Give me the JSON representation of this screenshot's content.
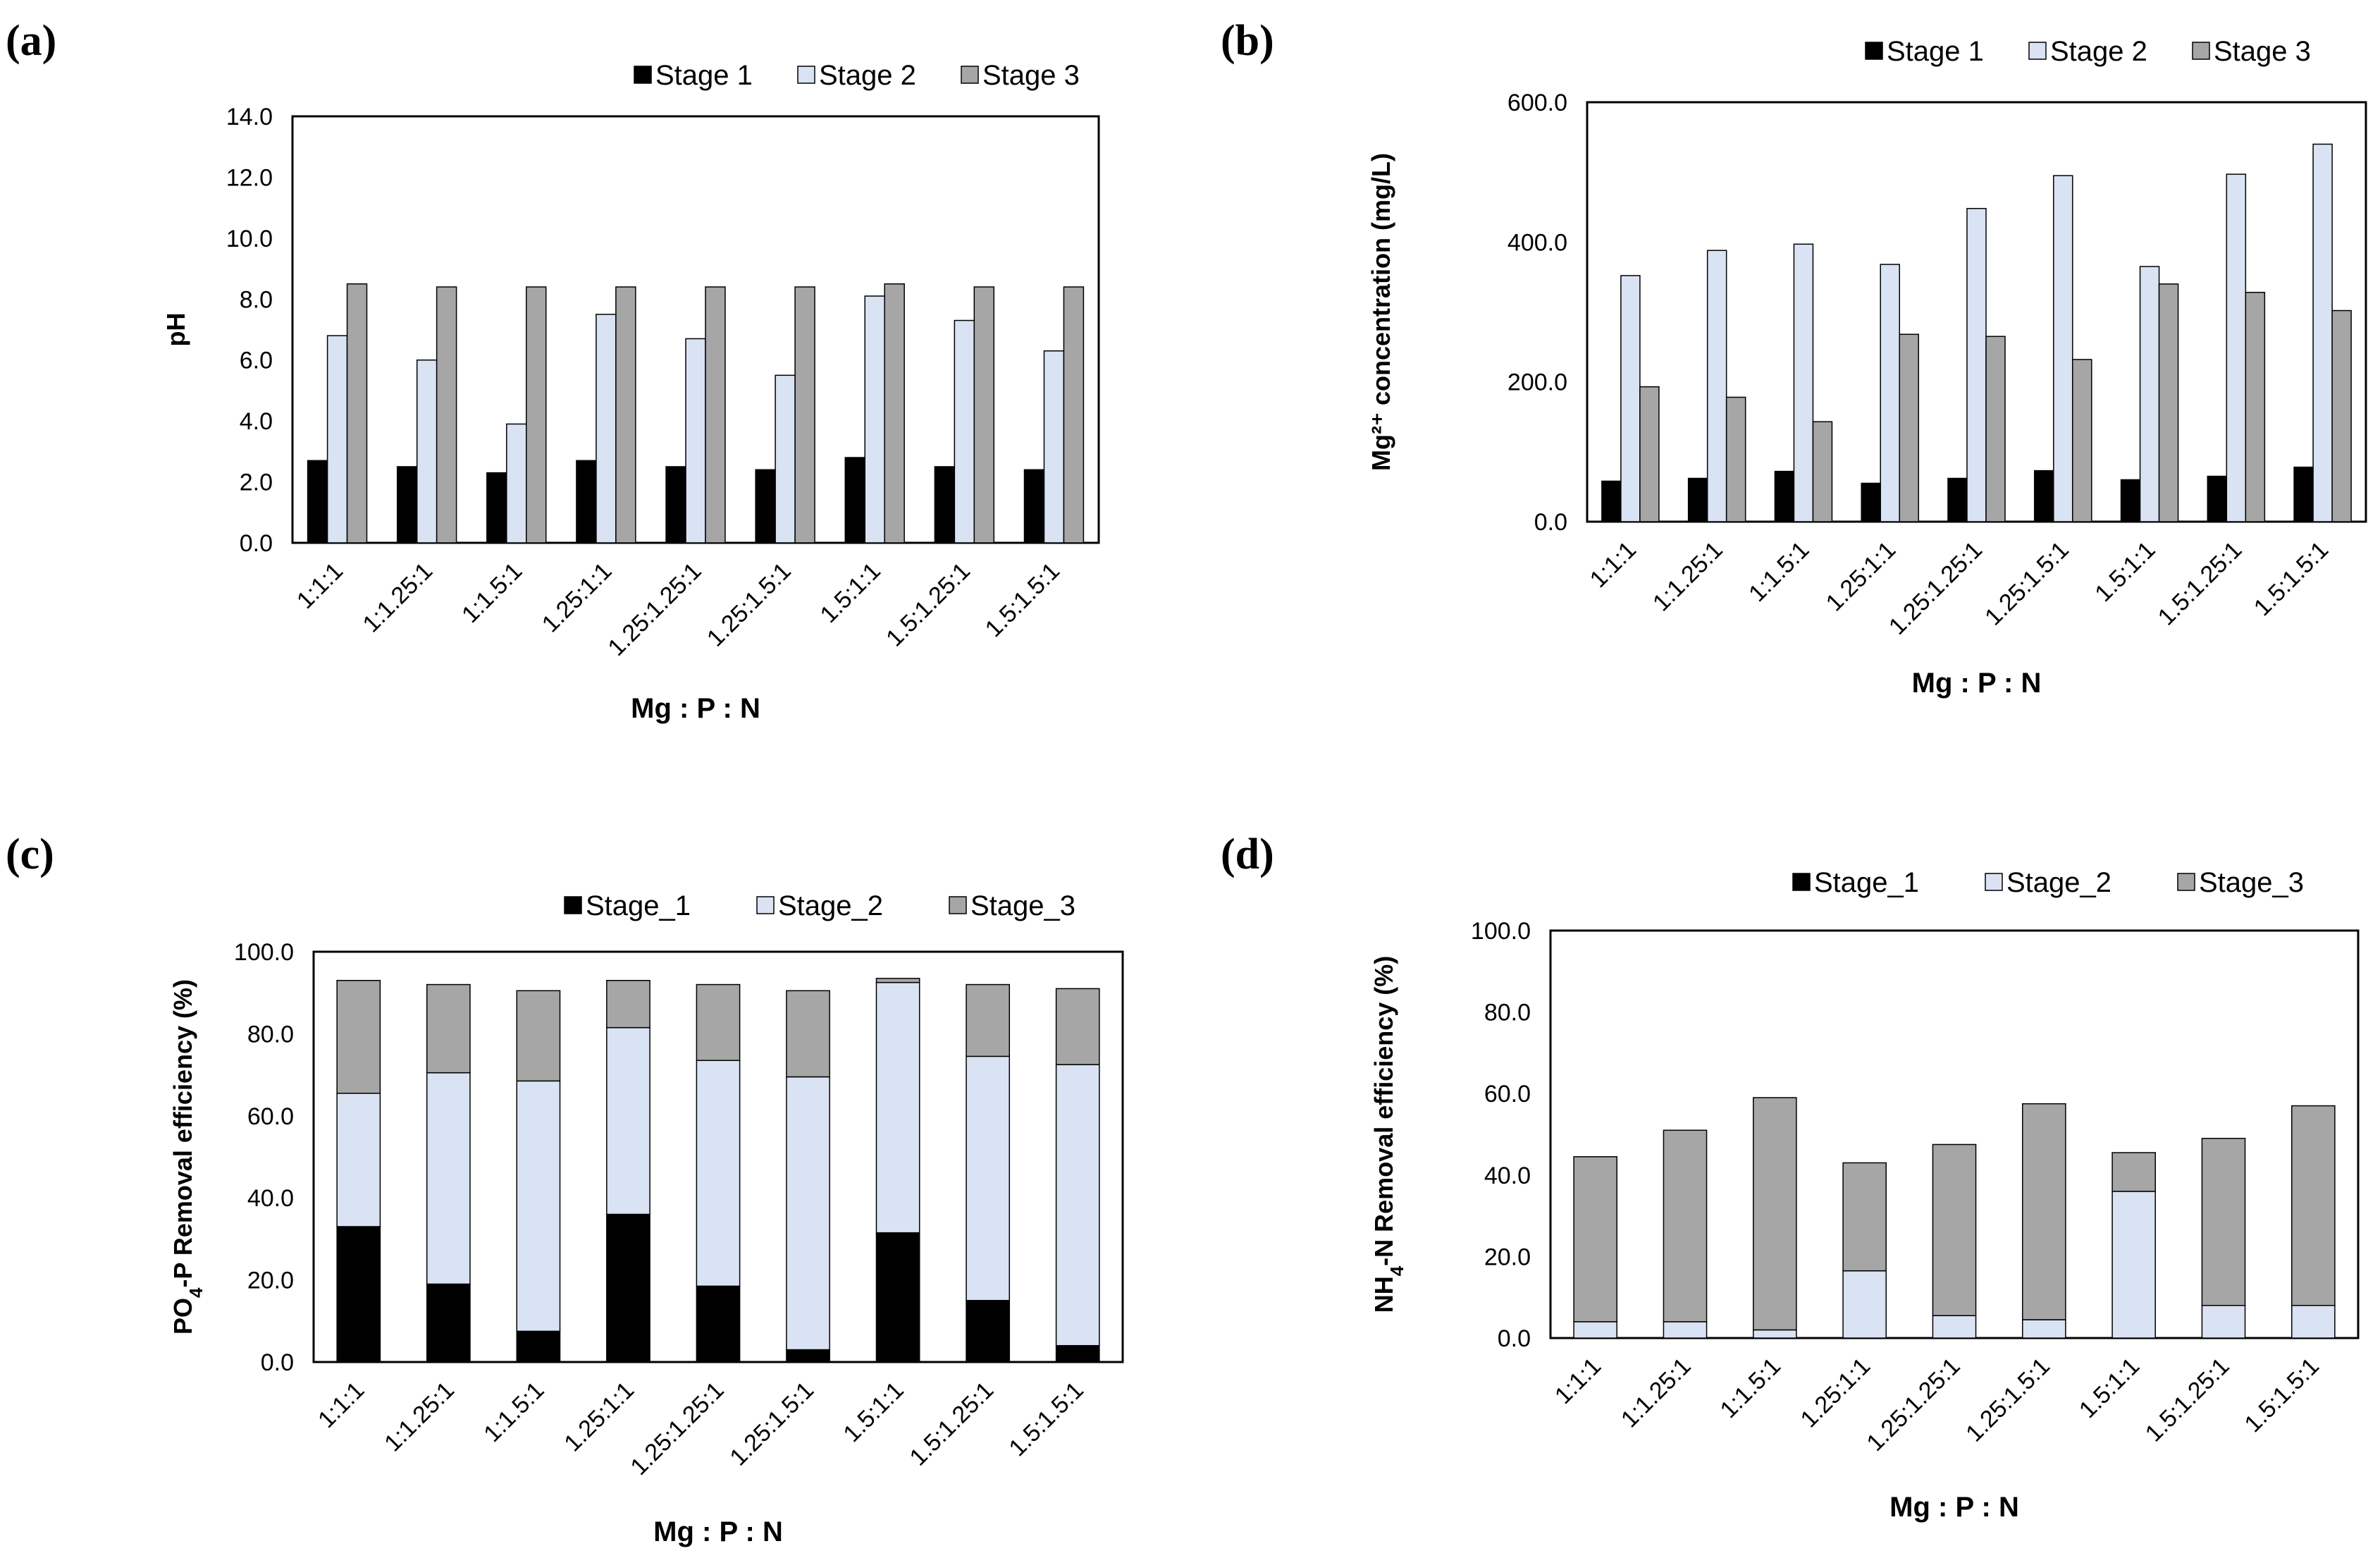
{
  "colors": {
    "stage1": "#000000",
    "stage2": "#dae3f3",
    "stage3": "#a6a6a6",
    "frame": "#000000"
  },
  "chart_data": [
    {
      "panel": "(a)",
      "type": "bar",
      "categories": [
        "1:1:1",
        "1:1.25:1",
        "1:1.5:1",
        "1.25:1:1",
        "1.25:1.25:1",
        "1.25:1.5:1",
        "1.5:1:1",
        "1.5:1.25:1",
        "1.5:1.5:1"
      ],
      "series": [
        {
          "name": "Stage 1",
          "values": [
            2.7,
            2.5,
            2.3,
            2.7,
            2.5,
            2.4,
            2.8,
            2.5,
            2.4
          ]
        },
        {
          "name": "Stage 2",
          "values": [
            6.8,
            6.0,
            3.9,
            7.5,
            6.7,
            5.5,
            8.1,
            7.3,
            6.3
          ]
        },
        {
          "name": "Stage 3",
          "values": [
            8.5,
            8.4,
            8.4,
            8.4,
            8.4,
            8.4,
            8.5,
            8.4,
            8.4
          ]
        }
      ],
      "xlabel": "Mg : P : N",
      "ylabel": "pH",
      "ylim": [
        0,
        14
      ],
      "yticks": [
        "0.0",
        "2.0",
        "4.0",
        "6.0",
        "8.0",
        "10.0",
        "12.0",
        "14.0"
      ],
      "stacked": false,
      "grid": false,
      "legend": "top"
    },
    {
      "panel": "(b)",
      "type": "bar",
      "categories": [
        "1:1:1",
        "1:1.25:1",
        "1:1.5:1",
        "1.25:1:1",
        "1.25:1.25:1",
        "1.25:1.5:1",
        "1.5:1:1",
        "1.5:1.25:1",
        "1.5:1.5:1"
      ],
      "series": [
        {
          "name": "Stage 1",
          "values": [
            58,
            62,
            72,
            55,
            62,
            73,
            60,
            65,
            78
          ]
        },
        {
          "name": "Stage 2",
          "values": [
            352,
            388,
            397,
            368,
            448,
            495,
            365,
            497,
            540
          ]
        },
        {
          "name": "Stage 3",
          "values": [
            193,
            178,
            143,
            268,
            265,
            232,
            340,
            328,
            302
          ]
        }
      ],
      "xlabel": "Mg : P : N",
      "ylabel": "Mg²⁺ concentration (mg/L)",
      "ylim": [
        0,
        600
      ],
      "yticks": [
        "0.0",
        "200.0",
        "400.0",
        "600.0"
      ],
      "stacked": false,
      "grid": false,
      "legend": "top"
    },
    {
      "panel": "(c)",
      "type": "bar",
      "categories": [
        "1:1:1",
        "1:1.25:1",
        "1:1.5:1",
        "1.25:1:1",
        "1.25:1.25:1",
        "1.25:1.5:1",
        "1.5:1:1",
        "1.5:1.25:1",
        "1.5:1.5:1"
      ],
      "series": [
        {
          "name": "Stage_1",
          "values": [
            33,
            19,
            7.5,
            36,
            18.5,
            3,
            31.5,
            15,
            4
          ]
        },
        {
          "name": "Stage_2",
          "values": [
            32.5,
            51.5,
            61,
            45.5,
            55,
            66.5,
            61,
            59.5,
            68.5
          ]
        },
        {
          "name": "Stage_3",
          "values": [
            27.5,
            21.5,
            22,
            11.5,
            18.5,
            21,
            1,
            17.5,
            18.5
          ]
        }
      ],
      "xlabel": "Mg : P : N",
      "ylabel_parts": [
        "PO",
        "4",
        "-P Removal efficiency (%)"
      ],
      "ylim": [
        0,
        100
      ],
      "yticks": [
        "0.0",
        "20.0",
        "40.0",
        "60.0",
        "80.0",
        "100.0"
      ],
      "stacked": true,
      "grid": false,
      "legend": "top"
    },
    {
      "panel": "(d)",
      "type": "bar",
      "categories": [
        "1:1:1",
        "1:1.25:1",
        "1:1.5:1",
        "1.25:1:1",
        "1.25:1.25:1",
        "1.25:1.5:1",
        "1.5:1:1",
        "1.5:1.25:1",
        "1.5:1.5:1"
      ],
      "series": [
        {
          "name": "Stage_1",
          "values": [
            0,
            0,
            0,
            0,
            0,
            0,
            0,
            0,
            0
          ]
        },
        {
          "name": "Stage_2",
          "values": [
            4,
            4,
            2,
            16.5,
            5.5,
            4.5,
            36,
            8,
            8
          ]
        },
        {
          "name": "Stage_3",
          "values": [
            40.5,
            47,
            57,
            26.5,
            42,
            53,
            9.5,
            41,
            49
          ]
        }
      ],
      "xlabel": "Mg : P : N",
      "ylabel_parts": [
        "NH",
        "4",
        "-N Removal efficiency (%)"
      ],
      "ylim": [
        0,
        100
      ],
      "yticks": [
        "0.0",
        "20.0",
        "40.0",
        "60.0",
        "80.0",
        "100.0"
      ],
      "stacked": true,
      "grid": false,
      "legend": "top"
    }
  ]
}
